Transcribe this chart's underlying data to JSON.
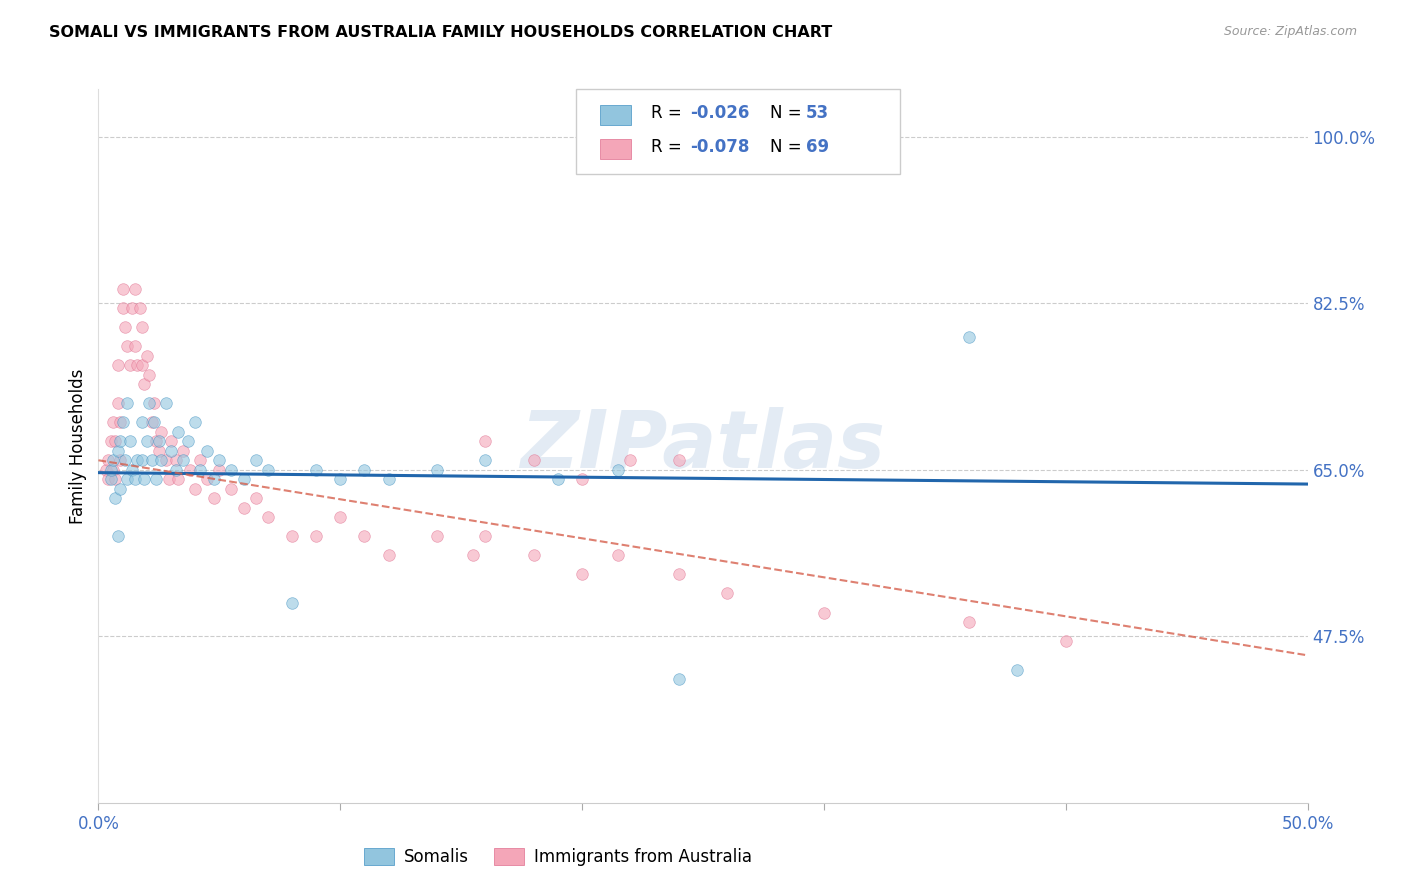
{
  "title": "SOMALI VS IMMIGRANTS FROM AUSTRALIA FAMILY HOUSEHOLDS CORRELATION CHART",
  "source": "Source: ZipAtlas.com",
  "ylabel": "Family Households",
  "xlim": [
    0.0,
    0.5
  ],
  "ylim": [
    0.3,
    1.05
  ],
  "xtick_positions": [
    0.0,
    0.1,
    0.2,
    0.3,
    0.4,
    0.5
  ],
  "xtick_labels_show": {
    "0.0": "0.0%",
    "0.5": "50.0%"
  },
  "yticks_right": [
    1.0,
    0.825,
    0.65,
    0.475
  ],
  "ytick_right_labels": [
    "100.0%",
    "82.5%",
    "65.0%",
    "47.5%"
  ],
  "watermark": "ZIPatlas",
  "legend_label_somali": "Somalis",
  "legend_label_aus": "Immigrants from Australia",
  "blue_color": "#92c5de",
  "pink_color": "#f4a6b8",
  "blue_edge_color": "#4393c3",
  "pink_edge_color": "#e07090",
  "blue_line_color": "#2166ac",
  "pink_line_color": "#d6604d",
  "scatter_alpha": 0.6,
  "scatter_size": 70,
  "blue_trend_x0": 0.0,
  "blue_trend_y0": 0.647,
  "blue_trend_x1": 0.5,
  "blue_trend_y1": 0.635,
  "pink_trend_x0": 0.0,
  "pink_trend_y0": 0.66,
  "pink_trend_x1": 0.5,
  "pink_trend_y1": 0.455,
  "somali_x": [
    0.005,
    0.005,
    0.006,
    0.007,
    0.008,
    0.008,
    0.009,
    0.009,
    0.01,
    0.011,
    0.012,
    0.012,
    0.013,
    0.014,
    0.015,
    0.016,
    0.018,
    0.018,
    0.019,
    0.02,
    0.021,
    0.022,
    0.023,
    0.024,
    0.025,
    0.026,
    0.028,
    0.03,
    0.032,
    0.033,
    0.035,
    0.037,
    0.04,
    0.042,
    0.045,
    0.048,
    0.05,
    0.055,
    0.06,
    0.065,
    0.07,
    0.08,
    0.09,
    0.1,
    0.11,
    0.12,
    0.14,
    0.16,
    0.19,
    0.215,
    0.24,
    0.36,
    0.38
  ],
  "somali_y": [
    0.64,
    0.65,
    0.66,
    0.62,
    0.58,
    0.67,
    0.63,
    0.68,
    0.7,
    0.66,
    0.72,
    0.64,
    0.68,
    0.65,
    0.64,
    0.66,
    0.7,
    0.66,
    0.64,
    0.68,
    0.72,
    0.66,
    0.7,
    0.64,
    0.68,
    0.66,
    0.72,
    0.67,
    0.65,
    0.69,
    0.66,
    0.68,
    0.7,
    0.65,
    0.67,
    0.64,
    0.66,
    0.65,
    0.64,
    0.66,
    0.65,
    0.51,
    0.65,
    0.64,
    0.65,
    0.64,
    0.65,
    0.66,
    0.64,
    0.65,
    0.43,
    0.79,
    0.44
  ],
  "aus_x": [
    0.003,
    0.004,
    0.004,
    0.005,
    0.006,
    0.006,
    0.007,
    0.007,
    0.008,
    0.008,
    0.009,
    0.009,
    0.01,
    0.01,
    0.011,
    0.012,
    0.013,
    0.014,
    0.015,
    0.015,
    0.016,
    0.017,
    0.018,
    0.018,
    0.019,
    0.02,
    0.021,
    0.022,
    0.023,
    0.024,
    0.025,
    0.026,
    0.028,
    0.029,
    0.03,
    0.032,
    0.033,
    0.035,
    0.038,
    0.04,
    0.042,
    0.045,
    0.048,
    0.05,
    0.055,
    0.06,
    0.065,
    0.07,
    0.08,
    0.09,
    0.1,
    0.11,
    0.12,
    0.14,
    0.155,
    0.16,
    0.18,
    0.2,
    0.215,
    0.24,
    0.26,
    0.3,
    0.36,
    0.4,
    0.24,
    0.16,
    0.18,
    0.2,
    0.22
  ],
  "aus_y": [
    0.65,
    0.64,
    0.66,
    0.68,
    0.65,
    0.7,
    0.64,
    0.68,
    0.72,
    0.76,
    0.66,
    0.7,
    0.84,
    0.82,
    0.8,
    0.78,
    0.76,
    0.82,
    0.84,
    0.78,
    0.76,
    0.82,
    0.8,
    0.76,
    0.74,
    0.77,
    0.75,
    0.7,
    0.72,
    0.68,
    0.67,
    0.69,
    0.66,
    0.64,
    0.68,
    0.66,
    0.64,
    0.67,
    0.65,
    0.63,
    0.66,
    0.64,
    0.62,
    0.65,
    0.63,
    0.61,
    0.62,
    0.6,
    0.58,
    0.58,
    0.6,
    0.58,
    0.56,
    0.58,
    0.56,
    0.58,
    0.56,
    0.54,
    0.56,
    0.54,
    0.52,
    0.5,
    0.49,
    0.47,
    0.66,
    0.68,
    0.66,
    0.64,
    0.66
  ]
}
